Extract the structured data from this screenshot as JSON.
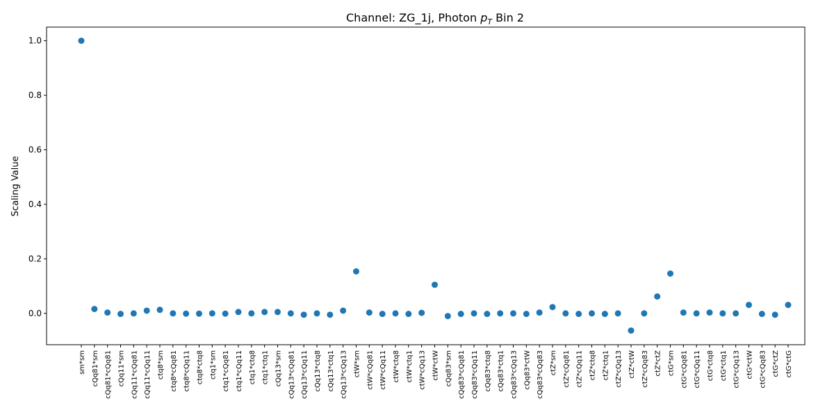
{
  "chart_data": {
    "type": "scatter",
    "title": "Channel: ZG_1j, Photon $p_T$ Bin 2",
    "title_parts": {
      "prefix": "Channel: ZG_1j, Photon ",
      "p": "p",
      "sub": "T",
      "suffix": " Bin 2"
    },
    "xlabel": "",
    "ylabel": "Scaling Value",
    "ylim": [
      -0.115,
      1.05
    ],
    "yticks": [
      "0.0",
      "0.2",
      "0.4",
      "0.6",
      "0.8",
      "1.0"
    ],
    "grid": false,
    "color": "#1f77b4",
    "categories": [
      "sm*sm",
      "cQq81*sm",
      "cQq81*cQq81",
      "cQq11*sm",
      "cQq11*cQq81",
      "cQq11*cQq11",
      "ctq8*sm",
      "ctq8*cQq81",
      "ctq8*cQq11",
      "ctq8*ctq8",
      "ctq1*sm",
      "ctq1*cQq81",
      "ctq1*cQq11",
      "ctq1*ctq8",
      "ctq1*ctq1",
      "cQq13*sm",
      "cQq13*cQq81",
      "cQq13*cQq11",
      "cQq13*ctq8",
      "cQq13*ctq1",
      "cQq13*cQq13",
      "ctW*sm",
      "ctW*cQq81",
      "ctW*cQq11",
      "ctW*ctq8",
      "ctW*ctq1",
      "ctW*cQq13",
      "ctW*ctW",
      "cQq83*sm",
      "cQq83*cQq81",
      "cQq83*cQq11",
      "cQq83*ctq8",
      "cQq83*ctq1",
      "cQq83*cQq13",
      "cQq83*ctW",
      "cQq83*cQq83",
      "ctZ*sm",
      "ctZ*cQq81",
      "ctZ*cQq11",
      "ctZ*ctq8",
      "ctZ*ctq1",
      "ctZ*cQq13",
      "ctZ*ctW",
      "ctZ*cQq83",
      "ctZ*ctZ",
      "ctG*sm",
      "ctG*cQq81",
      "ctG*cQq11",
      "ctG*ctq8",
      "ctG*ctq1",
      "ctG*cQq13",
      "ctG*ctW",
      "ctG*cQq83",
      "ctG*ctZ",
      "ctG*ctG"
    ],
    "values": [
      1.0,
      0.016,
      0.003,
      -0.002,
      0.0,
      0.01,
      0.013,
      0.0,
      -0.001,
      -0.001,
      0.0,
      -0.001,
      0.005,
      0.0,
      0.005,
      0.005,
      0.0,
      -0.005,
      0.0,
      -0.005,
      0.01,
      0.154,
      0.003,
      -0.002,
      0.0,
      -0.002,
      0.002,
      0.105,
      -0.01,
      -0.002,
      0.0,
      -0.002,
      0.0,
      0.0,
      -0.002,
      0.003,
      0.023,
      0.0,
      -0.002,
      0.0,
      -0.002,
      0.0,
      -0.063,
      0.0,
      0.062,
      0.146,
      0.003,
      0.0,
      0.003,
      0.0,
      0.0,
      0.031,
      -0.002,
      -0.005,
      0.031
    ]
  }
}
